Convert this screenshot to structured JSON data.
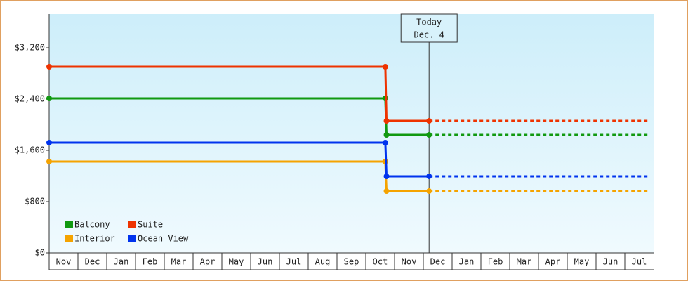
{
  "chart_data": {
    "type": "line",
    "categories": [
      "Nov",
      "Dec",
      "Jan",
      "Feb",
      "Mar",
      "Apr",
      "May",
      "Jun",
      "Jul",
      "Aug",
      "Sep",
      "Oct",
      "Nov",
      "Dec",
      "Jan",
      "Feb",
      "Mar",
      "Apr",
      "May",
      "Jun",
      "Jul"
    ],
    "xlim": [
      0,
      21
    ],
    "ylim": [
      0,
      3726
    ],
    "yticks": [
      {
        "value": 0,
        "label": "$0"
      },
      {
        "value": 800,
        "label": "$800"
      },
      {
        "value": 1600,
        "label": "$1,600"
      },
      {
        "value": 2400,
        "label": "$2,400"
      },
      {
        "value": 3200,
        "label": "$3,200"
      }
    ],
    "legend": "lower left",
    "annotation": {
      "lines": [
        "Today",
        "Dec. 4"
      ],
      "x": 13.2
    },
    "series": [
      {
        "name": "Balcony",
        "color": "#119911",
        "x": [
          0,
          11.68,
          11.72,
          13.2
        ],
        "values": [
          2411,
          2411,
          1841,
          1841
        ]
      },
      {
        "name": "Suite",
        "color": "#ee3300",
        "x": [
          0,
          11.68,
          11.72,
          13.2
        ],
        "values": [
          2904,
          2904,
          2060,
          2060
        ]
      },
      {
        "name": "Interior",
        "color": "#f5a300",
        "x": [
          0,
          11.68,
          11.72,
          13.2
        ],
        "values": [
          1425,
          1425,
          964,
          964
        ]
      },
      {
        "name": "Ocean View",
        "color": "#0033ee",
        "x": [
          0,
          11.68,
          11.72,
          13.2
        ],
        "values": [
          1721,
          1721,
          1195,
          1195
        ]
      }
    ]
  }
}
